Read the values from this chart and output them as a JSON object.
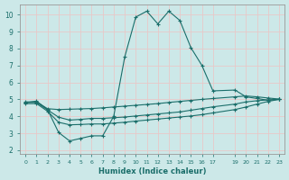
{
  "title": "",
  "xlabel": "Humidex (Indice chaleur)",
  "bg_color": "#cce8e8",
  "grid_color": "#e8c8c8",
  "line_color": "#1a6e6a",
  "xlim": [
    -0.5,
    23.5
  ],
  "ylim": [
    1.8,
    10.6
  ],
  "xticks": [
    0,
    1,
    2,
    3,
    4,
    5,
    6,
    7,
    8,
    9,
    10,
    11,
    12,
    13,
    14,
    15,
    16,
    17,
    19,
    20,
    21,
    22,
    23
  ],
  "yticks": [
    2,
    3,
    4,
    5,
    6,
    7,
    8,
    9,
    10
  ],
  "line1_x": [
    0,
    1,
    2,
    3,
    4,
    5,
    6,
    7,
    8,
    9,
    10,
    11,
    12,
    13,
    14,
    15,
    16,
    17,
    19,
    20,
    21,
    22,
    23
  ],
  "line1_y": [
    4.8,
    4.9,
    4.4,
    3.05,
    2.55,
    2.7,
    2.85,
    2.85,
    4.0,
    7.5,
    9.85,
    10.2,
    9.45,
    10.2,
    9.65,
    8.05,
    7.0,
    5.5,
    5.55,
    5.15,
    5.05,
    4.95,
    5.0
  ],
  "line2_x": [
    0,
    1,
    2,
    3,
    4,
    5,
    6,
    7,
    8,
    9,
    10,
    11,
    12,
    13,
    14,
    15,
    16,
    17,
    19,
    20,
    21,
    22,
    23
  ],
  "line2_y": [
    4.85,
    4.85,
    4.45,
    4.4,
    4.42,
    4.44,
    4.46,
    4.5,
    4.55,
    4.6,
    4.65,
    4.7,
    4.75,
    4.82,
    4.88,
    4.94,
    5.0,
    5.05,
    5.15,
    5.2,
    5.15,
    5.08,
    5.02
  ],
  "line3_x": [
    0,
    1,
    2,
    3,
    4,
    5,
    6,
    7,
    8,
    9,
    10,
    11,
    12,
    13,
    14,
    15,
    16,
    17,
    19,
    20,
    21,
    22,
    23
  ],
  "line3_y": [
    4.75,
    4.75,
    4.3,
    3.65,
    3.5,
    3.52,
    3.55,
    3.55,
    3.6,
    3.65,
    3.72,
    3.78,
    3.84,
    3.9,
    3.96,
    4.02,
    4.1,
    4.2,
    4.4,
    4.55,
    4.72,
    4.88,
    5.0
  ],
  "line4_x": [
    0,
    1,
    2,
    3,
    4,
    5,
    6,
    7,
    8,
    9,
    10,
    11,
    12,
    13,
    14,
    15,
    16,
    17,
    19,
    20,
    21,
    22,
    23
  ],
  "line4_y": [
    4.82,
    4.82,
    4.38,
    3.95,
    3.78,
    3.82,
    3.88,
    3.88,
    3.92,
    3.96,
    4.02,
    4.08,
    4.14,
    4.2,
    4.26,
    4.36,
    4.46,
    4.56,
    4.72,
    4.85,
    4.92,
    4.97,
    5.0
  ]
}
